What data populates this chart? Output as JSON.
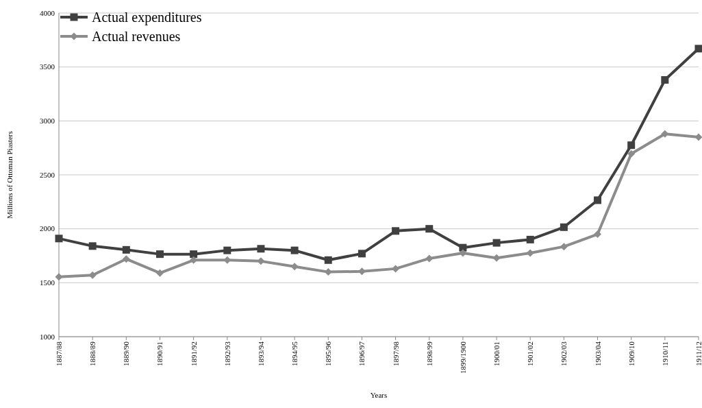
{
  "chart_data": {
    "type": "line",
    "xlabel": "Years",
    "ylabel": "Millions of Ottoman Piasters",
    "categories": [
      "1887/88",
      "1888/89",
      "1889/90",
      "1890/91",
      "1891/92",
      "1892/93",
      "1893/94",
      "1894/95",
      "1895/96",
      "1896/97",
      "1897/98",
      "1898/99",
      "1899/1900",
      "1900/01",
      "1901/02",
      "1902/03",
      "1903/04",
      "1909/10",
      "1910/11",
      "1911/12"
    ],
    "series": [
      {
        "name": "Actual expenditures",
        "color": "#404040",
        "marker": "square",
        "values": [
          1910,
          1840,
          1805,
          1765,
          1765,
          1800,
          1815,
          1800,
          1710,
          1770,
          1980,
          2000,
          1825,
          1870,
          1900,
          2015,
          2265,
          2775,
          3380,
          3670
        ]
      },
      {
        "name": "Actual revenues",
        "color": "#8c8c8c",
        "marker": "diamond",
        "values": [
          1555,
          1570,
          1720,
          1590,
          1710,
          1710,
          1700,
          1650,
          1600,
          1605,
          1630,
          1725,
          1775,
          1730,
          1775,
          1835,
          1950,
          2695,
          2880,
          2850
        ]
      }
    ],
    "ylim": [
      1000,
      4000
    ],
    "yticks": [
      1000,
      1500,
      2000,
      2500,
      3000,
      3500,
      4000
    ],
    "grid": "y",
    "legend": "top left",
    "line_style": "solid"
  }
}
